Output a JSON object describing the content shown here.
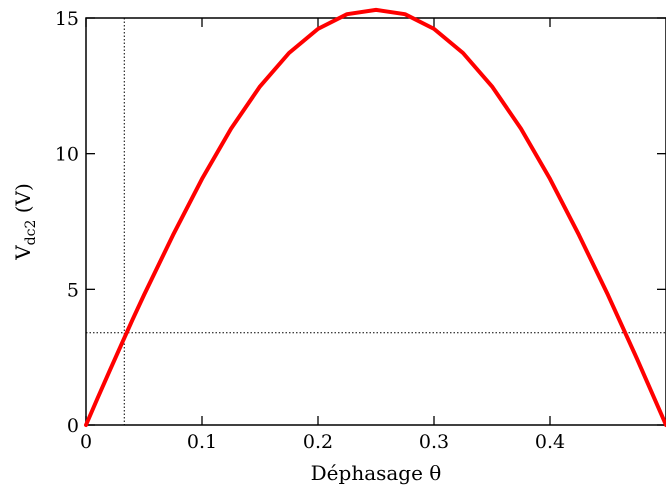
{
  "chart_data": {
    "type": "line",
    "xlabel": "Déphasage θ",
    "ylabel_main": "V",
    "ylabel_sub": "dc2",
    "ylabel_unit": " (V)",
    "xlim": [
      0,
      0.5
    ],
    "ylim": [
      0,
      15
    ],
    "xticks": [
      0,
      0.1,
      0.2,
      0.3,
      0.4
    ],
    "xtick_labels": [
      "0",
      "0.1",
      "0.2",
      "0.3",
      "0.4"
    ],
    "yticks": [
      0,
      5,
      10,
      15
    ],
    "ytick_labels": [
      "0",
      "5",
      "10",
      "15"
    ],
    "grid": false,
    "series": [
      {
        "color": "#ff0000",
        "x": [
          0,
          0.01,
          0.02,
          0.03,
          0.04,
          0.05,
          0.075,
          0.1,
          0.125,
          0.15,
          0.175,
          0.2,
          0.225,
          0.25,
          0.275,
          0.3,
          0.325,
          0.35,
          0.375,
          0.4,
          0.425,
          0.45,
          0.475,
          0.5
        ],
        "y": [
          0,
          0.99,
          1.96,
          2.92,
          3.87,
          4.79,
          7.0,
          9.07,
          10.92,
          12.48,
          13.71,
          14.6,
          15.14,
          15.3,
          15.14,
          14.6,
          13.71,
          12.48,
          10.92,
          9.07,
          7.0,
          4.79,
          2.44,
          0
        ]
      }
    ],
    "reference_lines": {
      "vertical_x": 0.033,
      "horizontal_y": 3.4,
      "style": "dotted"
    }
  }
}
